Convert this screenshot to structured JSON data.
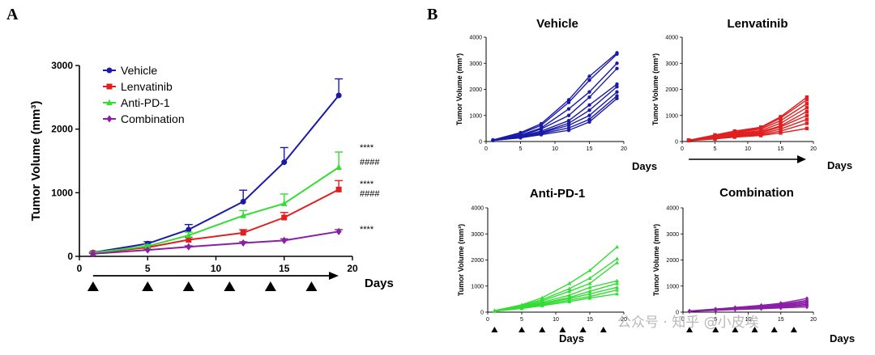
{
  "panels": {
    "a_label": "A",
    "b_label": "B"
  },
  "chart_data": [
    {
      "type": "line",
      "title": "",
      "xlabel": "Days",
      "ylabel": "Tumor Volume (mm³)",
      "xlim": [
        0,
        20
      ],
      "ylim": [
        0,
        3000
      ],
      "xticks": [
        0,
        5,
        10,
        15,
        20
      ],
      "yticks": [
        0,
        1000,
        2000,
        3000
      ],
      "legend_position": "top-left",
      "x": [
        1,
        5,
        8,
        12,
        15,
        19
      ],
      "series": [
        {
          "name": "Vehicle",
          "color": "#1a1aa8",
          "values": [
            60,
            200,
            420,
            860,
            1480,
            2530
          ],
          "errors": [
            10,
            30,
            80,
            180,
            230,
            260
          ]
        },
        {
          "name": "Lenvatinib",
          "color": "#e02020",
          "values": [
            50,
            140,
            260,
            370,
            610,
            1050
          ],
          "errors": [
            8,
            20,
            40,
            50,
            80,
            140
          ]
        },
        {
          "name": "Anti-PD-1",
          "color": "#33dd33",
          "values": [
            55,
            160,
            330,
            640,
            830,
            1400
          ],
          "errors": [
            8,
            25,
            50,
            80,
            150,
            240
          ]
        },
        {
          "name": "Combination",
          "color": "#8a1fa6",
          "values": [
            40,
            100,
            150,
            210,
            250,
            390
          ],
          "errors": [
            5,
            10,
            15,
            20,
            25,
            30
          ]
        }
      ],
      "annotations": [
        "****",
        "####",
        "****",
        "####",
        "****"
      ],
      "treatment_markers": [
        1,
        5,
        8,
        11,
        14,
        17
      ]
    },
    {
      "type": "line",
      "title": "Vehicle",
      "xlabel": "Days",
      "ylabel": "Tumor Volume (mm³)",
      "xlim": [
        0,
        20
      ],
      "ylim": [
        0,
        4000
      ],
      "xticks": [
        0,
        5,
        10,
        15,
        20
      ],
      "yticks": [
        0,
        1000,
        2000,
        3000,
        4000
      ],
      "color": "#1a1aa8",
      "marker": "circle",
      "x": [
        1,
        5,
        8,
        12,
        15,
        19
      ],
      "series": [
        [
          60,
          340,
          680,
          1600,
          2500,
          3400
        ],
        [
          50,
          300,
          620,
          1500,
          2350,
          3350
        ],
        [
          60,
          250,
          520,
          1250,
          1900,
          3000
        ],
        [
          55,
          210,
          480,
          1000,
          1700,
          2800
        ],
        [
          50,
          200,
          400,
          800,
          1400,
          2200
        ],
        [
          45,
          180,
          350,
          700,
          1200,
          2100
        ],
        [
          50,
          170,
          330,
          620,
          1000,
          1900
        ],
        [
          40,
          150,
          300,
          520,
          850,
          1750
        ],
        [
          45,
          140,
          260,
          430,
          750,
          1650
        ]
      ]
    },
    {
      "type": "line",
      "title": "Lenvatinib",
      "xlabel": "Days",
      "ylabel": "Tumor Volume (mm³)",
      "xlim": [
        0,
        20
      ],
      "ylim": [
        0,
        4000
      ],
      "xticks": [
        0,
        5,
        10,
        15,
        20
      ],
      "yticks": [
        0,
        1000,
        2000,
        3000,
        4000
      ],
      "color": "#e02020",
      "marker": "square",
      "x": [
        1,
        5,
        8,
        12,
        15,
        19
      ],
      "series": [
        [
          50,
          250,
          400,
          550,
          950,
          1700
        ],
        [
          50,
          220,
          360,
          520,
          900,
          1600
        ],
        [
          45,
          200,
          330,
          480,
          800,
          1450
        ],
        [
          50,
          180,
          300,
          420,
          700,
          1300
        ],
        [
          40,
          160,
          270,
          380,
          600,
          1150
        ],
        [
          45,
          150,
          240,
          340,
          560,
          1000
        ],
        [
          40,
          130,
          220,
          300,
          480,
          850
        ],
        [
          35,
          110,
          190,
          260,
          400,
          700
        ],
        [
          35,
          100,
          170,
          230,
          330,
          500
        ]
      ]
    },
    {
      "type": "line",
      "title": "Anti-PD-1",
      "xlabel": "Days",
      "ylabel": "Tumor Volume (mm³)",
      "xlim": [
        0,
        20
      ],
      "ylim": [
        0,
        4000
      ],
      "xticks": [
        0,
        5,
        10,
        15,
        20
      ],
      "yticks": [
        0,
        1000,
        2000,
        3000,
        4000
      ],
      "color": "#33dd33",
      "marker": "triangle",
      "x": [
        1,
        5,
        8,
        12,
        15,
        19
      ],
      "series": [
        [
          60,
          280,
          550,
          1100,
          1600,
          2500
        ],
        [
          55,
          250,
          480,
          900,
          1300,
          2050
        ],
        [
          50,
          220,
          430,
          800,
          1100,
          1900
        ],
        [
          50,
          200,
          380,
          650,
          950,
          1200
        ],
        [
          45,
          180,
          340,
          560,
          800,
          1100
        ],
        [
          45,
          170,
          320,
          520,
          700,
          950
        ],
        [
          40,
          150,
          280,
          460,
          600,
          850
        ],
        [
          40,
          140,
          250,
          400,
          540,
          700
        ]
      ]
    },
    {
      "type": "line",
      "title": "Combination",
      "xlabel": "Days",
      "ylabel": "Tumor Volume (mm³)",
      "xlim": [
        0,
        20
      ],
      "ylim": [
        0,
        4000
      ],
      "xticks": [
        0,
        5,
        10,
        15,
        20
      ],
      "yticks": [
        0,
        1000,
        2000,
        3000,
        4000
      ],
      "color": "#8a1fa6",
      "marker": "diamond",
      "x": [
        1,
        5,
        8,
        12,
        15,
        19
      ],
      "series": [
        [
          45,
          120,
          180,
          260,
          340,
          520
        ],
        [
          40,
          110,
          160,
          230,
          300,
          450
        ],
        [
          40,
          100,
          150,
          210,
          270,
          400
        ],
        [
          35,
          90,
          140,
          190,
          240,
          350
        ],
        [
          35,
          85,
          130,
          170,
          210,
          300
        ],
        [
          30,
          80,
          120,
          150,
          190,
          260
        ],
        [
          30,
          70,
          100,
          130,
          160,
          200
        ]
      ]
    }
  ],
  "watermark": "公众号 · 知乎 @小皮埃"
}
